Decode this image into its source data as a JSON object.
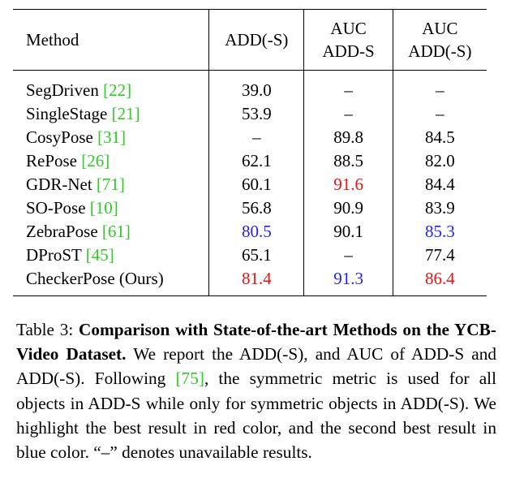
{
  "table": {
    "headers": [
      {
        "line1": "Method",
        "line2": ""
      },
      {
        "line1": "ADD(-S)",
        "line2": ""
      },
      {
        "line1": "AUC",
        "line2": "ADD-S"
      },
      {
        "line1": "AUC",
        "line2": "ADD(-S)"
      }
    ],
    "rows": [
      {
        "method": "SegDriven",
        "cite": "[22]",
        "values": [
          {
            "text": "39.0",
            "color": "#000000"
          },
          {
            "text": "–",
            "color": "#000000"
          },
          {
            "text": "–",
            "color": "#000000"
          }
        ]
      },
      {
        "method": "SingleStage",
        "cite": "[21]",
        "values": [
          {
            "text": "53.9",
            "color": "#000000"
          },
          {
            "text": "–",
            "color": "#000000"
          },
          {
            "text": "–",
            "color": "#000000"
          }
        ]
      },
      {
        "method": "CosyPose",
        "cite": "[31]",
        "values": [
          {
            "text": "–",
            "color": "#000000"
          },
          {
            "text": "89.8",
            "color": "#000000"
          },
          {
            "text": "84.5",
            "color": "#000000"
          }
        ]
      },
      {
        "method": "RePose",
        "cite": "[26]",
        "values": [
          {
            "text": "62.1",
            "color": "#000000"
          },
          {
            "text": "88.5",
            "color": "#000000"
          },
          {
            "text": "82.0",
            "color": "#000000"
          }
        ]
      },
      {
        "method": "GDR-Net",
        "cite": "[71]",
        "values": [
          {
            "text": "60.1",
            "color": "#000000"
          },
          {
            "text": "91.6",
            "color": "#ee1111"
          },
          {
            "text": "84.4",
            "color": "#000000"
          }
        ]
      },
      {
        "method": "SO-Pose",
        "cite": "[10]",
        "values": [
          {
            "text": "56.8",
            "color": "#000000"
          },
          {
            "text": "90.9",
            "color": "#000000"
          },
          {
            "text": "83.9",
            "color": "#000000"
          }
        ]
      },
      {
        "method": "ZebraPose",
        "cite": "[61]",
        "values": [
          {
            "text": "80.5",
            "color": "#1f1fff"
          },
          {
            "text": "90.1",
            "color": "#000000"
          },
          {
            "text": "85.3",
            "color": "#1f1fff"
          }
        ]
      },
      {
        "method": "DProST",
        "cite": "[45]",
        "values": [
          {
            "text": "65.1",
            "color": "#000000"
          },
          {
            "text": "–",
            "color": "#000000"
          },
          {
            "text": "77.4",
            "color": "#000000"
          }
        ]
      },
      {
        "method": "CheckerPose (Ours)",
        "cite": "",
        "values": [
          {
            "text": "81.4",
            "color": "#ee1111"
          },
          {
            "text": "91.3",
            "color": "#1f1fff"
          },
          {
            "text": "86.4",
            "color": "#ee1111"
          }
        ]
      }
    ]
  },
  "caption": {
    "label": "Table 3:",
    "bold_title": "Comparison with State-of-the-art Methods on the YCB-Video Dataset.",
    "text_before_cite": "We report the ADD(-S), and AUC of ADD-S and ADD(-S). Following",
    "cite": "[75]",
    "text_after_cite": ", the symmetric metric is used for all objects in ADD-S while only for symmetric objects in ADD(-S). We highlight the best result in red color, and the second best result in blue color. “–” denotes unavailable results."
  },
  "colors": {
    "best": "#ee1111",
    "second_best": "#1f1fff",
    "citation": "#2ecc24"
  }
}
